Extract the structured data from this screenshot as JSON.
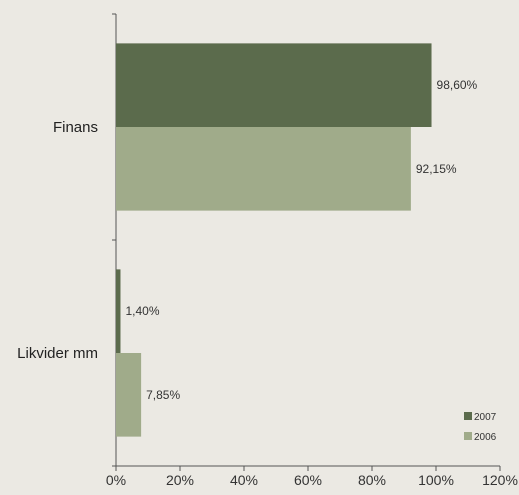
{
  "chart_data": {
    "type": "bar",
    "orientation": "horizontal",
    "categories": [
      "Finans",
      "Likvider mm"
    ],
    "series": [
      {
        "name": "2007",
        "values": [
          98.6,
          1.4
        ],
        "labels": [
          "98,60%",
          "1,40%"
        ],
        "color": "#5b6b4c"
      },
      {
        "name": "2006",
        "values": [
          92.15,
          7.85
        ],
        "labels": [
          "92,15%",
          "7,85%"
        ],
        "color": "#a0ab8a"
      }
    ],
    "x_ticks": [
      "0%",
      "20%",
      "40%",
      "60%",
      "80%",
      "100%",
      "120%"
    ],
    "xlim": [
      0,
      120
    ],
    "grid": false,
    "legend_position": "bottom-right",
    "background": "#ebe9e3",
    "axis_color": "#555555"
  }
}
